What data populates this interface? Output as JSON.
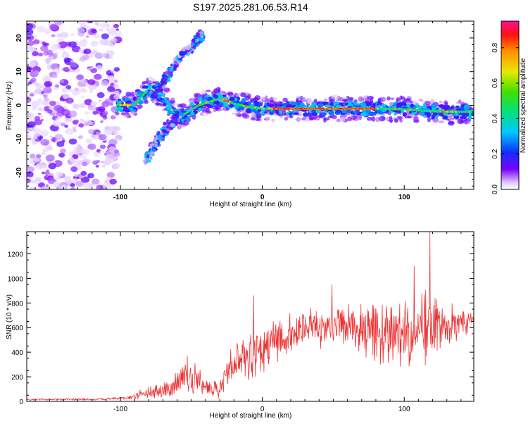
{
  "title": "S197.2025.281.06.53.R14",
  "chart_data": [
    {
      "type": "heatmap",
      "xlabel": "Height of straight line (km)",
      "ylabel": "Frequency (Hz)",
      "xlim": [
        -166,
        149
      ],
      "ylim": [
        -25,
        25
      ],
      "x_ticks": [
        "-100",
        "0",
        "100"
      ],
      "x_tick_values": [
        -100,
        0,
        100
      ],
      "y_ticks": [
        "20",
        "10",
        "0",
        "-10",
        "-20"
      ],
      "y_tick_values": [
        20,
        10,
        0,
        -10,
        -20
      ],
      "colorbar": {
        "label": "Normalized spectral amplitude",
        "ticks": [
          "0.0",
          "0.2",
          "0.4",
          "0.6",
          "0.8"
        ],
        "tick_values": [
          0.0,
          0.2,
          0.4,
          0.6,
          0.8
        ],
        "range": [
          0,
          0.95
        ]
      },
      "features": [
        {
          "name": "noise-region",
          "x_range": [
            -166,
            -101
          ],
          "freq_range": [
            -25,
            25
          ]
        },
        {
          "name": "main-ridge",
          "points": [
            [
              -102,
              0
            ],
            [
              -90,
              0.2
            ],
            [
              -80,
              5
            ],
            [
              -70,
              3
            ],
            [
              -60,
              -4
            ],
            [
              -45,
              0
            ],
            [
              -30,
              2
            ],
            [
              -20,
              0.5
            ],
            [
              -10,
              -0.5
            ],
            [
              0,
              -1
            ],
            [
              20,
              -1
            ],
            [
              40,
              -1
            ],
            [
              60,
              -1
            ],
            [
              80,
              -1
            ],
            [
              100,
              -1.2
            ],
            [
              120,
              -1.8
            ],
            [
              149,
              -2
            ]
          ]
        },
        {
          "name": "upper-branch",
          "points": [
            [
              -78,
              2
            ],
            [
              -60,
              13
            ],
            [
              -42,
              21
            ]
          ]
        },
        {
          "name": "lower-branch",
          "points": [
            [
              -82,
              -16
            ],
            [
              -70,
              -8
            ],
            [
              -58,
              -2
            ]
          ]
        }
      ]
    },
    {
      "type": "line",
      "xlabel": "Height of straight line (km)",
      "ylabel": "SNR (10 * v/v)",
      "xlim": [
        -166,
        149
      ],
      "ylim": [
        0,
        1380
      ],
      "x_ticks": [
        "-100",
        "0",
        "100"
      ],
      "x_tick_values": [
        -100,
        0,
        100
      ],
      "y_ticks": [
        "0",
        "200",
        "400",
        "600",
        "800",
        "1000",
        "1200"
      ],
      "y_tick_values": [
        0,
        200,
        400,
        600,
        800,
        1000,
        1200
      ],
      "series": [
        {
          "name": "SNR",
          "color": "#ee3333",
          "envelope": [
            {
              "x": -166,
              "base": 15,
              "amp": 8
            },
            {
              "x": -110,
              "base": 18,
              "amp": 10
            },
            {
              "x": -95,
              "base": 30,
              "amp": 20
            },
            {
              "x": -85,
              "base": 60,
              "amp": 50
            },
            {
              "x": -70,
              "base": 90,
              "amp": 70
            },
            {
              "x": -60,
              "base": 150,
              "amp": 110
            },
            {
              "x": -55,
              "base": 200,
              "amp": 150
            },
            {
              "x": -45,
              "base": 180,
              "amp": 130
            },
            {
              "x": -40,
              "base": 120,
              "amp": 80
            },
            {
              "x": -30,
              "base": 90,
              "amp": 80
            },
            {
              "x": -25,
              "base": 250,
              "amp": 170
            },
            {
              "x": -10,
              "base": 380,
              "amp": 220
            },
            {
              "x": 5,
              "base": 470,
              "amp": 230
            },
            {
              "x": 20,
              "base": 540,
              "amp": 200
            },
            {
              "x": 40,
              "base": 600,
              "amp": 180
            },
            {
              "x": 55,
              "base": 620,
              "amp": 200
            },
            {
              "x": 70,
              "base": 580,
              "amp": 280
            },
            {
              "x": 90,
              "base": 550,
              "amp": 300
            },
            {
              "x": 105,
              "base": 560,
              "amp": 330
            },
            {
              "x": 118,
              "base": 620,
              "amp": 380
            },
            {
              "x": 130,
              "base": 630,
              "amp": 200
            },
            {
              "x": 149,
              "base": 660,
              "amp": 100
            }
          ],
          "peaks": [
            {
              "x": -53,
              "y": 370
            },
            {
              "x": 118,
              "y": 1380
            },
            {
              "x": 107,
              "y": 1100
            },
            {
              "x": -6,
              "y": 860
            },
            {
              "x": 49,
              "y": 950
            }
          ]
        }
      ]
    }
  ]
}
